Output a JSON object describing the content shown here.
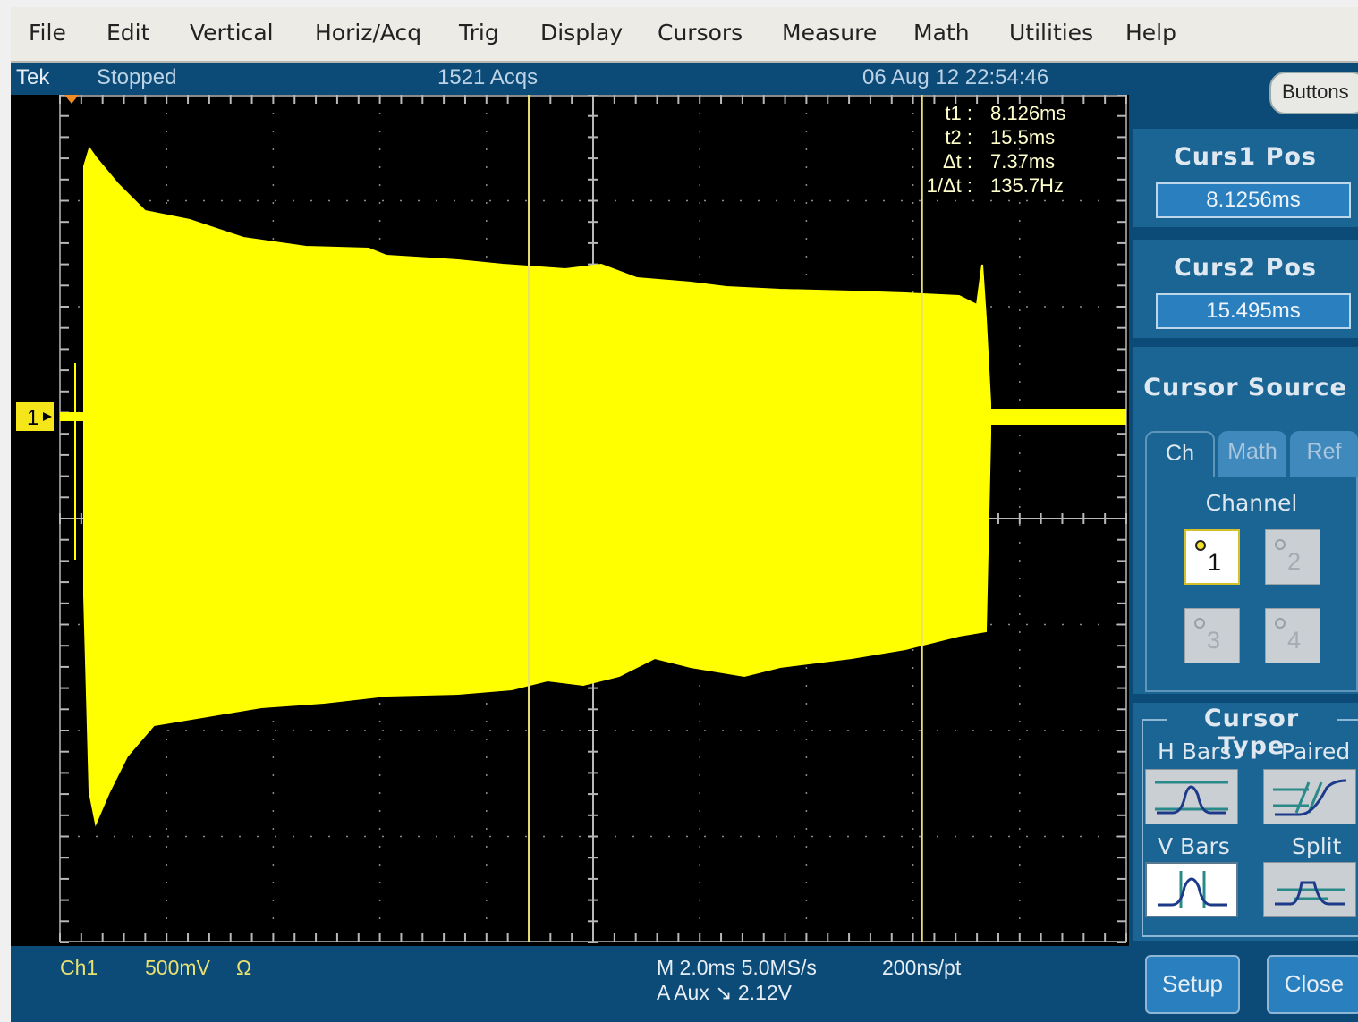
{
  "menu": {
    "items": [
      "File",
      "Edit",
      "Vertical",
      "Horiz/Acq",
      "Trig",
      "Display",
      "Cursors",
      "Measure",
      "Math",
      "Utilities",
      "Help"
    ]
  },
  "status": {
    "brand": "Tek",
    "state": "Stopped",
    "acqs": "1521 Acqs",
    "datetime": "06 Aug 12 22:54:46"
  },
  "cursor_readout": {
    "t1_label": "t1 :",
    "t1_value": "8.126ms",
    "t2_label": "t2 :",
    "t2_value": "15.5ms",
    "dt_label": "Δt :",
    "dt_value": "7.37ms",
    "inv_label": "1/Δt :",
    "inv_value": "135.7Hz"
  },
  "channel_marker": "1",
  "info": {
    "channel": "Ch1",
    "scale": "500mV",
    "coupling": "Ω",
    "timebase": "M 2.0ms 5.0MS/s",
    "resolution": "200ns/pt",
    "trigger": "A  Aux  ↘  2.12V"
  },
  "panel": {
    "buttons_label": "Buttons",
    "curs1_title": "Curs1 Pos",
    "curs1_value": "8.1256ms",
    "curs2_title": "Curs2 Pos",
    "curs2_value": "15.495ms",
    "source_title": "Cursor Source",
    "tabs": [
      "Ch",
      "Math",
      "Ref"
    ],
    "channel_label": "Channel",
    "channels": [
      "1",
      "2",
      "3",
      "4"
    ],
    "type_title": "Cursor Type",
    "hbars": "H Bars",
    "paired": "Paired",
    "vbars": "V Bars",
    "split": "Split",
    "setup": "Setup",
    "close": "Close"
  },
  "colors": {
    "trace": "#ffff00",
    "background": "#000000",
    "panel": "#0c4a77",
    "panel_section": "#1a6594",
    "readout_text": "#ffffcc",
    "info_text": "#e8e070"
  },
  "scope": {
    "horizontal_divisions": 10,
    "vertical_divisions": 8,
    "time_per_division_ms": 2.0,
    "volts_per_division_mv": 500,
    "cursor1_ms": 8.1256,
    "cursor2_ms": 15.495
  }
}
